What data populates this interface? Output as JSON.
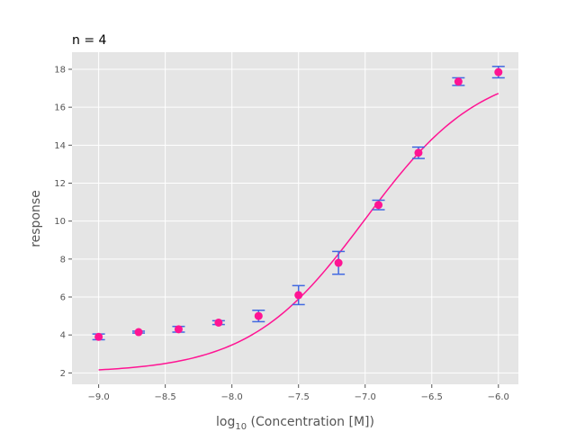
{
  "chart_data": {
    "type": "scatter",
    "title": "n = 4",
    "xlabel": "log10 (Concentration [M])",
    "ylabel": "response",
    "xlim": [
      -9.2,
      -5.85
    ],
    "ylim": [
      1.4,
      18.9
    ],
    "xticks": [
      -9.0,
      -8.5,
      -8.0,
      -7.5,
      -7.0,
      -6.5,
      -6.0
    ],
    "xtick_labels": [
      "−9.0",
      "−8.5",
      "−8.0",
      "−7.5",
      "−7.0",
      "−6.5",
      "−6.0"
    ],
    "yticks": [
      2,
      4,
      6,
      8,
      10,
      12,
      14,
      16,
      18
    ],
    "ytick_labels": [
      "2",
      "4",
      "6",
      "8",
      "10",
      "12",
      "14",
      "16",
      "18"
    ],
    "grid": true,
    "points": {
      "x": [
        -9.0,
        -8.7,
        -8.4,
        -8.1,
        -7.8,
        -7.5,
        -7.2,
        -6.9,
        -6.6,
        -6.3,
        -6.0
      ],
      "y": [
        3.9,
        4.15,
        4.3,
        4.65,
        5.0,
        6.1,
        7.8,
        10.85,
        13.6,
        17.35,
        17.85
      ],
      "yerr": [
        0.15,
        0.05,
        0.15,
        0.1,
        0.3,
        0.5,
        0.6,
        0.25,
        0.3,
        0.2,
        0.3
      ]
    },
    "fit": {
      "bottom": 2.0,
      "top": 18.2,
      "log_ec50": -7.0,
      "hill": 1.0,
      "x_range": [
        -9.0,
        -6.0
      ]
    },
    "colors": {
      "background": "#E5E5E5",
      "grid": "#FFFFFF",
      "points": "#FF1493",
      "error_bars": "#4169E1",
      "fit_line": "#FF1493"
    }
  }
}
